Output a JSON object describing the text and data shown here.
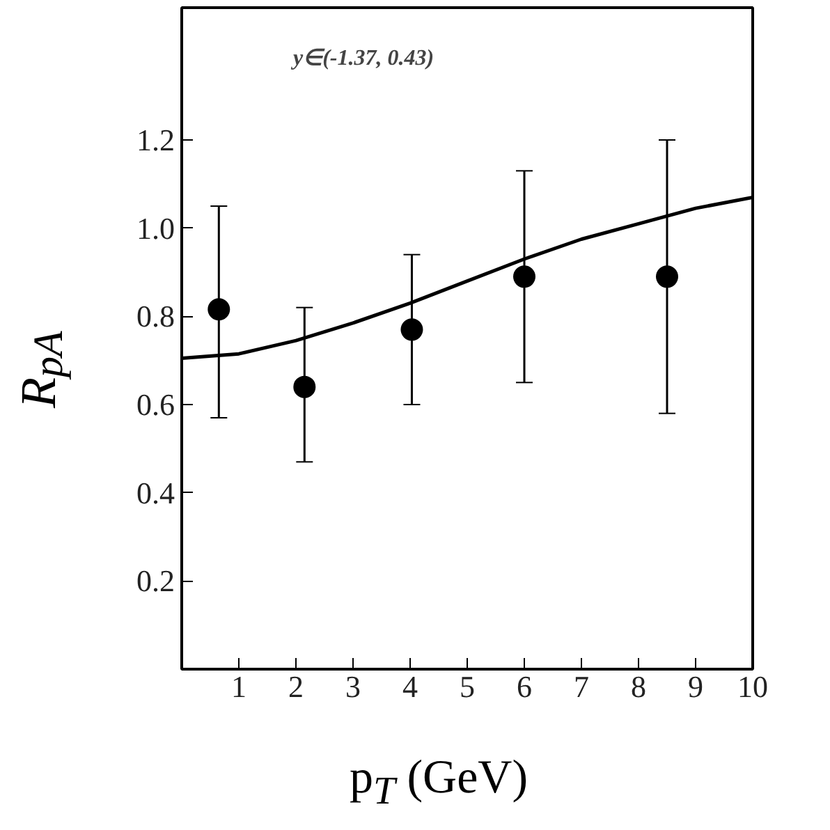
{
  "chart_data": {
    "type": "line",
    "xlabel": "p$_{T}$ (GeV)",
    "ylabel": "R$_{pA}$",
    "annotations": [
      "y∈(-1.37, 0.43)"
    ],
    "series": [
      {
        "color": "#000000",
        "x": [
          0,
          1,
          2,
          3,
          4,
          5,
          6,
          7,
          8,
          9,
          10
        ],
        "values": [
          0.705,
          0.715,
          0.745,
          0.785,
          0.83,
          0.88,
          0.93,
          0.975,
          1.01,
          1.045,
          1.07
        ],
        "line_style": "solid",
        "marker": "none"
      },
      {
        "type": "scatter",
        "color": "#000000",
        "x": [
          0.65,
          2.15,
          4.03,
          6.0,
          8.5
        ],
        "values": [
          0.816,
          0.64,
          0.77,
          0.89,
          0.89
        ],
        "errors": [
          [
            0.57,
            1.05
          ],
          [
            0.47,
            0.82
          ],
          [
            0.6,
            0.94
          ],
          [
            0.65,
            1.13
          ],
          [
            0.58,
            1.2
          ]
        ],
        "marker": "circle"
      }
    ],
    "xlim": [
      0,
      10
    ],
    "xticks": [
      1,
      2,
      3,
      4,
      5,
      6,
      7,
      8,
      9,
      10
    ],
    "ylim": [
      0,
      1.5
    ],
    "yticks": [
      0.2,
      0.4,
      0.6,
      0.8,
      {
        "value": 1,
        "label": "1.0"
      },
      1.2
    ],
    "grid": false
  }
}
